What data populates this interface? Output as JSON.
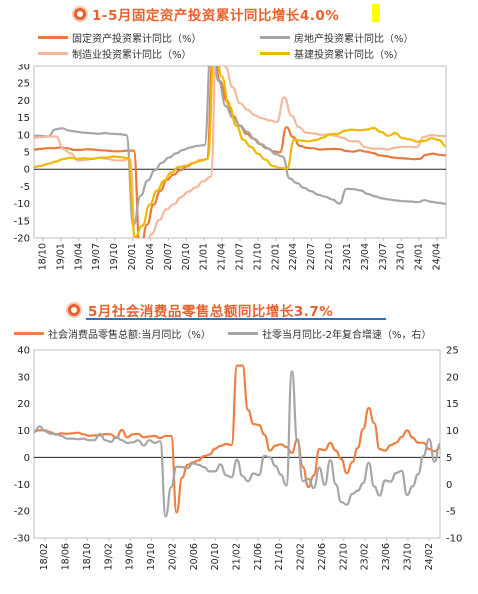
{
  "chart_data": [
    {
      "type": "line",
      "title": "1-5月固定资产投资累计同比增长4.0%",
      "title_highlight": "%",
      "ylim": [
        -20,
        30
      ],
      "yticks": [
        30,
        25,
        20,
        15,
        10,
        5,
        0,
        -5,
        -10,
        -15,
        -20
      ],
      "x_tick_labels": [
        "18/10",
        "19/01",
        "19/04",
        "19/07",
        "19/10",
        "20/01",
        "20/04",
        "20/07",
        "20/10",
        "21/01",
        "21/04",
        "21/07",
        "21/10",
        "22/01",
        "22/04",
        "22/07",
        "22/10",
        "23/01",
        "23/04",
        "23/07",
        "23/10",
        "24/01",
        "24/04"
      ],
      "grid": false,
      "legend_placement": "top",
      "series": [
        {
          "name": "固定资产投资累计同比（%）",
          "color": "#e8793a",
          "width": 2.2,
          "values": [
            5.7,
            5.9,
            6.1,
            6.1,
            6.3,
            6.1,
            5.6,
            5.6,
            5.8,
            5.7,
            5.5,
            5.4,
            5.2,
            5.2,
            5.4,
            5.4,
            -24.5,
            -16.1,
            -10.3,
            -6.3,
            -3.1,
            -1.6,
            -0.3,
            0.8,
            1.8,
            2.6,
            2.9,
            35.0,
            25.6,
            19.9,
            15.4,
            12.6,
            10.3,
            8.9,
            7.3,
            6.1,
            5.2,
            4.9,
            12.2,
            9.3,
            6.8,
            6.2,
            6.1,
            5.7,
            5.8,
            5.9,
            5.8,
            5.3,
            5.1,
            5.5,
            5.1,
            4.7,
            4.0,
            3.8,
            3.4,
            3.2,
            3.1,
            2.9,
            3.0,
            4.2,
            4.5,
            4.2,
            4.0
          ]
        },
        {
          "name": "房地产投资累计同比（%）",
          "color": "#a6a6a6",
          "width": 2.2,
          "values": [
            9.7,
            9.7,
            9.5,
            11.6,
            11.9,
            11.2,
            10.9,
            10.6,
            10.5,
            10.3,
            10.5,
            10.3,
            10.2,
            9.9,
            -16.3,
            -7.7,
            -3.3,
            -0.3,
            1.9,
            3.4,
            4.6,
            5.6,
            6.3,
            6.8,
            7.0,
            38.3,
            25.6,
            18.3,
            15.0,
            12.7,
            10.9,
            8.8,
            7.2,
            6.0,
            4.4,
            3.7,
            -2.7,
            -4.0,
            -5.4,
            -6.4,
            -7.4,
            -8.0,
            -8.8,
            -10.0,
            -5.7,
            -5.8,
            -6.2,
            -7.2,
            -7.9,
            -8.5,
            -8.8,
            -9.1,
            -9.3,
            -9.4,
            -9.6,
            -9.0,
            -9.5,
            -9.8,
            -10.1
          ]
        },
        {
          "name": "制造业投资累计同比（%）",
          "color": "#f4b99c",
          "width": 2.2,
          "values": [
            9.1,
            9.3,
            9.5,
            9.5,
            5.9,
            4.6,
            2.5,
            2.7,
            3.0,
            3.3,
            3.0,
            2.6,
            2.5,
            3.1,
            -31.5,
            -25.2,
            -18.8,
            -14.8,
            -11.7,
            -10.2,
            -8.1,
            -6.5,
            -5.3,
            -3.5,
            -2.2,
            53.4,
            29.8,
            23.8,
            19.2,
            17.3,
            15.7,
            14.8,
            14.2,
            13.7,
            20.9,
            15.6,
            12.2,
            10.6,
            10.4,
            10.0,
            10.1,
            9.7,
            9.1,
            8.1,
            8.1,
            6.4,
            6.0,
            6.0,
            5.7,
            6.2,
            6.5,
            6.5,
            6.4,
            9.4,
            9.9,
            9.7,
            9.6
          ]
        },
        {
          "name": "基建投资累计同比（%）",
          "color": "#f0b800",
          "width": 2.2,
          "values": [
            0.6,
            1.0,
            1.6,
            2.2,
            2.9,
            3.3,
            3.0,
            3.2,
            3.0,
            3.3,
            3.4,
            3.7,
            3.5,
            3.2,
            -19.7,
            -16.4,
            -10.4,
            -6.3,
            -3.3,
            -1.0,
            0.6,
            1.0,
            1.8,
            2.4,
            3.0,
            36.6,
            26.9,
            18.4,
            12.6,
            8.5,
            6.5,
            4.5,
            2.8,
            1.0,
            0.4,
            0.2,
            8.6,
            8.3,
            8.1,
            8.5,
            9.2,
            10.2,
            10.3,
            11.2,
            11.5,
            11.3,
            11.5,
            12.0,
            10.8,
            9.7,
            10.5,
            9.0,
            8.7,
            8.0,
            8.2,
            9.0,
            8.5,
            6.7
          ]
        }
      ]
    },
    {
      "type": "line",
      "title": "5月社会消费品零售总额同比增长3.7%",
      "ylim": [
        -30,
        40
      ],
      "ylim_right": [
        -10,
        25
      ],
      "yticks": [
        40,
        30,
        20,
        10,
        0,
        -10,
        -20,
        -30
      ],
      "yticks_right": [
        25,
        20,
        15,
        10,
        5,
        0,
        -5,
        -10
      ],
      "x_tick_labels": [
        "18/02",
        "18/06",
        "18/10",
        "19/02",
        "19/06",
        "19/10",
        "20/02",
        "20/06",
        "20/10",
        "21/02",
        "21/06",
        "21/10",
        "22/02",
        "22/06",
        "22/10",
        "23/02",
        "23/06",
        "23/10",
        "24/02"
      ],
      "grid": false,
      "legend_placement": "top",
      "series": [
        {
          "name": "社会消费品零售总额:当月同比（%）",
          "color": "#ee7f43",
          "width": 2.2,
          "axis": "left",
          "values": [
            9.7,
            10.1,
            10.1,
            9.4,
            8.5,
            9.0,
            8.8,
            9.0,
            9.2,
            8.6,
            8.1,
            8.2,
            8.2,
            8.7,
            8.6,
            7.2,
            10.2,
            7.5,
            8.6,
            8.8,
            7.5,
            7.8,
            8.0,
            7.2,
            8.0,
            8.0,
            -20.5,
            -7.5,
            -2.8,
            -1.8,
            -1.1,
            0.5,
            1.1,
            3.3,
            4.3,
            5.0,
            4.6,
            34.2,
            34.2,
            17.7,
            12.4,
            12.1,
            8.5,
            2.5,
            4.4,
            4.9,
            3.9,
            1.7,
            6.7,
            -3.5,
            -11.1,
            -6.7,
            3.1,
            2.7,
            5.4,
            2.5,
            -0.5,
            -5.9,
            -1.8,
            3.5,
            10.6,
            18.4,
            12.7,
            3.1,
            2.5,
            4.6,
            5.5,
            7.6,
            10.1,
            7.4,
            5.5,
            5.5,
            3.1,
            2.3,
            3.7
          ]
        },
        {
          "name": "社零当月同比-2年复合增速（%，右）",
          "color": "#a6a6a6",
          "width": 2.2,
          "axis": "right",
          "values": [
            9.7,
            10.8,
            9.9,
            9.4,
            9.4,
            9.0,
            8.5,
            8.5,
            8.4,
            8.5,
            8.2,
            8.2,
            9.4,
            8.2,
            7.9,
            8.8,
            8.2,
            7.7,
            7.8,
            8.2,
            7.2,
            8.2,
            7.7,
            8.0,
            -6.0,
            -0.5,
            3.3,
            3.2,
            3.0,
            3.9,
            3.6,
            3.2,
            2.4,
            2.4,
            3.7,
            1.7,
            1.3,
            4.6,
            1.5,
            0.6,
            2.0,
            1.7,
            5.3,
            5.0,
            3.4,
            1.8,
            -0.2,
            21.0,
            8.0,
            0.6,
            1.0,
            -0.7,
            3.1,
            -0.1,
            4.5,
            0.0,
            -3.3,
            -3.8,
            -1.8,
            -1.2,
            0.2,
            4.0,
            -0.4,
            -2.1,
            0.7,
            0.5,
            2.1,
            2.5,
            -2.0,
            -0.4,
            1.9,
            5.3,
            8.4,
            4.2,
            7.5
          ]
        }
      ]
    }
  ]
}
